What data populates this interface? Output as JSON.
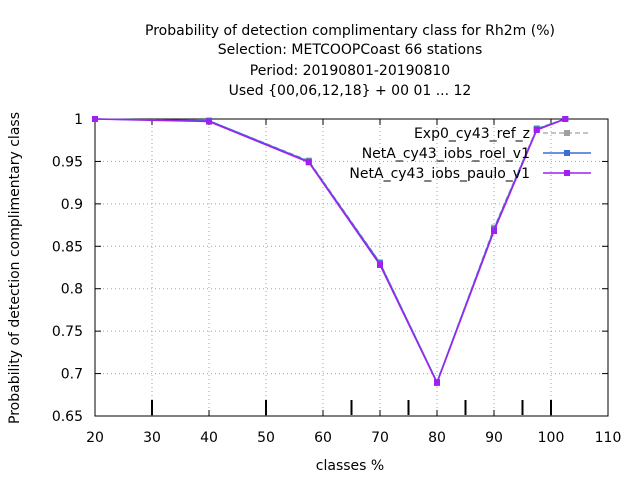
{
  "chart_data": {
    "type": "line",
    "title_lines": [
      "Probability of detection complimentary class  for Rh2m (%)",
      "Selection: METCOOPCoast     66 stations",
      "Period: 20190801-20190810",
      "Used {00,06,12,18} + 00 01 ... 12"
    ],
    "xlabel": "classes %",
    "ylabel": "Probability of detection complimentary class",
    "xlim": [
      20,
      110
    ],
    "ylim": [
      0.65,
      1.0
    ],
    "x_ticks": [
      20,
      30,
      40,
      50,
      60,
      70,
      80,
      90,
      100,
      110
    ],
    "y_ticks": [
      0.65,
      0.7,
      0.75,
      0.8,
      0.85,
      0.9,
      0.95,
      1.0
    ],
    "y_tick_labels": [
      "0.65",
      "0.7",
      "0.75",
      "0.8",
      "0.85",
      "0.9",
      "0.95",
      "1"
    ],
    "grid": true,
    "legend_position": "top-right",
    "class_limit_marks": [
      30,
      50,
      65,
      75,
      85,
      95,
      100
    ],
    "series": [
      {
        "name": "Exp0_cy43_ref_z",
        "color": "#a0a0a0",
        "dashed": true,
        "x": [
          20,
          40,
          57.5,
          70,
          80,
          90,
          97.5,
          102.5
        ],
        "y": [
          1.0,
          0.998,
          0.951,
          0.831,
          0.69,
          0.872,
          0.989,
          1.0
        ]
      },
      {
        "name": "NetA_cy43_iobs_roel_v1",
        "color": "#3a6fd8",
        "dashed": false,
        "x": [
          20,
          40,
          57.5,
          70,
          80,
          90,
          97.5,
          102.5
        ],
        "y": [
          1.0,
          0.998,
          0.95,
          0.83,
          0.69,
          0.87,
          0.988,
          1.0
        ]
      },
      {
        "name": "NetA_cy43_iobs_paulo_v1",
        "color": "#a020f0",
        "dashed": false,
        "x": [
          20,
          40,
          57.5,
          70,
          80,
          90,
          97.5,
          102.5
        ],
        "y": [
          1.0,
          0.997,
          0.949,
          0.828,
          0.689,
          0.868,
          0.987,
          1.0
        ]
      }
    ]
  }
}
